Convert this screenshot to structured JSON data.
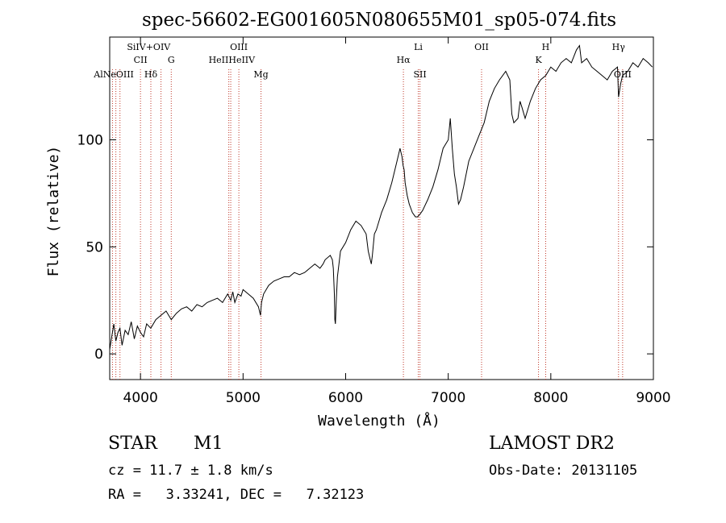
{
  "chart_data": {
    "type": "line",
    "title": "spec-56602-EG001605N080655M01_sp05-074.fits",
    "xlabel": "Wavelength (Å)",
    "ylabel": "Flux (relative)",
    "xlim": [
      3700,
      9000
    ],
    "ylim": [
      -12,
      148
    ],
    "xticks": [
      4000,
      5000,
      6000,
      7000,
      8000,
      9000
    ],
    "yticks": [
      0,
      50,
      100
    ],
    "grid": false,
    "series": [
      {
        "x": [
          3700,
          3720,
          3740,
          3760,
          3780,
          3800,
          3820,
          3850,
          3880,
          3910,
          3940,
          3970,
          4000,
          4030,
          4060,
          4100,
          4150,
          4200,
          4250,
          4300,
          4350,
          4400,
          4450,
          4500,
          4550,
          4600,
          4650,
          4700,
          4750,
          4800,
          4850,
          4880,
          4900,
          4920,
          4950,
          4980,
          5000,
          5050,
          5100,
          5150,
          5170,
          5180,
          5200,
          5250,
          5300,
          5350,
          5400,
          5450,
          5500,
          5550,
          5600,
          5650,
          5700,
          5750,
          5780,
          5800,
          5850,
          5870,
          5880,
          5890,
          5895,
          5900,
          5910,
          5920,
          5950,
          6000,
          6050,
          6100,
          6150,
          6200,
          6220,
          6240,
          6250,
          6260,
          6280,
          6300,
          6350,
          6400,
          6450,
          6500,
          6530,
          6550,
          6560,
          6570,
          6580,
          6600,
          6620,
          6650,
          6680,
          6700,
          6720,
          6750,
          6800,
          6850,
          6900,
          6950,
          7000,
          7020,
          7040,
          7060,
          7080,
          7100,
          7120,
          7150,
          7200,
          7250,
          7300,
          7350,
          7400,
          7450,
          7500,
          7530,
          7560,
          7600,
          7620,
          7640,
          7680,
          7700,
          7720,
          7750,
          7800,
          7850,
          7900,
          7950,
          8000,
          8050,
          8100,
          8150,
          8200,
          8250,
          8280,
          8300,
          8350,
          8400,
          8450,
          8500,
          8550,
          8600,
          8650,
          8660,
          8680,
          8700,
          8750,
          8800,
          8850,
          8900,
          8950,
          8990
        ],
        "y": [
          2,
          8,
          14,
          6,
          10,
          12,
          4,
          11,
          9,
          15,
          7,
          13,
          10,
          8,
          14,
          12,
          16,
          18,
          20,
          16,
          19,
          21,
          22,
          20,
          23,
          22,
          24,
          25,
          26,
          24,
          28,
          25,
          29,
          24,
          28,
          27,
          30,
          28,
          26,
          22,
          18,
          24,
          28,
          32,
          34,
          35,
          36,
          36,
          38,
          37,
          38,
          40,
          42,
          40,
          42,
          44,
          46,
          44,
          40,
          28,
          16,
          14,
          26,
          36,
          48,
          52,
          58,
          62,
          60,
          56,
          48,
          44,
          42,
          46,
          56,
          58,
          66,
          72,
          80,
          90,
          96,
          92,
          88,
          86,
          80,
          74,
          70,
          66,
          64,
          64,
          65,
          67,
          72,
          78,
          86,
          96,
          100,
          110,
          96,
          84,
          78,
          70,
          72,
          78,
          90,
          96,
          102,
          108,
          118,
          124,
          128,
          130,
          132,
          128,
          112,
          108,
          110,
          118,
          115,
          110,
          118,
          124,
          128,
          130,
          134,
          132,
          136,
          138,
          136,
          142,
          144,
          136,
          138,
          134,
          132,
          130,
          128,
          132,
          134,
          120,
          126,
          130,
          132,
          136,
          134,
          138,
          136,
          134
        ]
      }
    ],
    "line_labels": [
      {
        "label": "AlNeOIII",
        "x": 3740,
        "row": 3
      },
      {
        "label": "SiIV+OIV",
        "x": 4080,
        "row": 1
      },
      {
        "label": "CII",
        "x": 4000,
        "row": 2
      },
      {
        "label": "Hδ",
        "x": 4101,
        "row": 3
      },
      {
        "label": "G",
        "x": 4300,
        "row": 2
      },
      {
        "label": "OIII",
        "x": 4959,
        "row": 1
      },
      {
        "label": "HeIIHeIIV",
        "x": 4890,
        "row": 2
      },
      {
        "label": "Mg",
        "x": 5175,
        "row": 3
      },
      {
        "label": "Li",
        "x": 6708,
        "row": 1
      },
      {
        "label": "Hα",
        "x": 6563,
        "row": 2
      },
      {
        "label": "SII",
        "x": 6724,
        "row": 3
      },
      {
        "label": "OII",
        "x": 7325,
        "row": 1
      },
      {
        "label": "H",
        "x": 7950,
        "row": 1
      },
      {
        "label": "K",
        "x": 7880,
        "row": 2
      },
      {
        "label": "Hγ",
        "x": 8660,
        "row": 1
      },
      {
        "label": "OIII",
        "x": 8700,
        "row": 3
      }
    ],
    "line_positions": [
      3727,
      3760,
      3800,
      4000,
      4101,
      4200,
      4300,
      4861,
      4880,
      4959,
      5175,
      6563,
      6708,
      6724,
      7325,
      7880,
      7950,
      8660,
      8700
    ]
  },
  "info": {
    "class": "STAR",
    "subclass": "M1",
    "survey": "LAMOST DR2",
    "cz": "cz = 11.7 ± 1.8 km/s",
    "obs_date": "Obs-Date: 20131105",
    "radec": "RA =   3.33241, DEC =   7.32123"
  }
}
